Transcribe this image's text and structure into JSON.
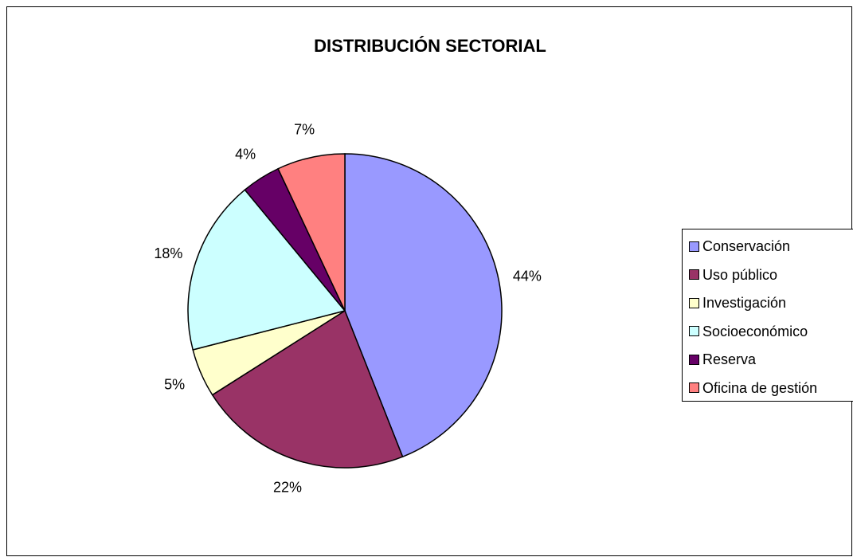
{
  "chart_data": {
    "type": "pie",
    "title": "DISTRIBUCIÓN SECTORIAL",
    "categories": [
      "Conservación",
      "Uso público",
      "Investigación",
      "Socioeconómico",
      "Reserva",
      "Oficina de gestión"
    ],
    "values": [
      44,
      22,
      5,
      18,
      4,
      7
    ],
    "value_labels": [
      "44%",
      "22%",
      "5%",
      "18%",
      "4%",
      "7%"
    ],
    "colors": [
      "#9999FF",
      "#993366",
      "#FFFFCC",
      "#CCFFFF",
      "#660066",
      "#FF8080"
    ],
    "legend_position": "right"
  }
}
